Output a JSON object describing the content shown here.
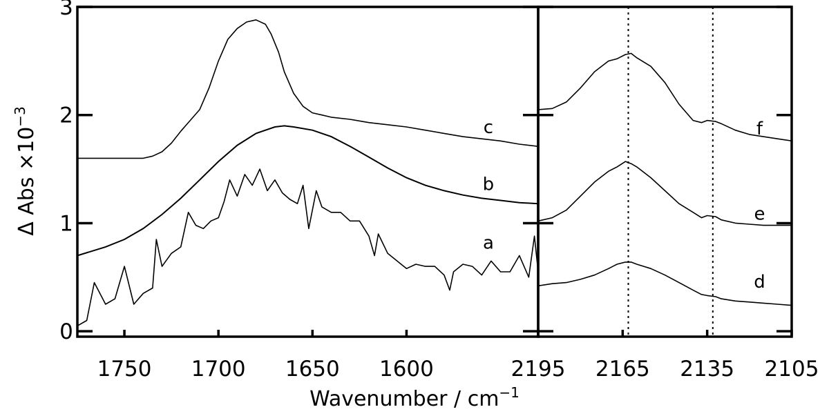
{
  "chart_data": {
    "type": "line",
    "ylabel": "Δ Abs ×10",
    "ylabel_exponent": "−3",
    "xlabel": "Wavenumber / cm",
    "xlabel_exponent": "−1",
    "ylim": [
      -0.05,
      3.0
    ],
    "yticks": [
      "0",
      "1",
      "2",
      "3"
    ],
    "grid": false,
    "panels": [
      {
        "name": "left",
        "xlim": [
          1775,
          1530
        ],
        "xticks": [
          "1750",
          "1700",
          "1650",
          "1600"
        ],
        "series": [
          {
            "name": "c",
            "x": [
              1775,
              1765,
              1750,
              1740,
              1735,
              1730,
              1725,
              1720,
              1715,
              1710,
              1705,
              1700,
              1695,
              1690,
              1685,
              1680,
              1675,
              1672,
              1668,
              1665,
              1660,
              1655,
              1650,
              1645,
              1640,
              1630,
              1620,
              1610,
              1600,
              1590,
              1580,
              1570,
              1560,
              1550,
              1540,
              1530
            ],
            "y": [
              1.6,
              1.6,
              1.6,
              1.6,
              1.62,
              1.66,
              1.74,
              1.85,
              1.95,
              2.05,
              2.25,
              2.5,
              2.7,
              2.8,
              2.86,
              2.88,
              2.84,
              2.75,
              2.58,
              2.4,
              2.2,
              2.08,
              2.02,
              2.0,
              1.98,
              1.96,
              1.93,
              1.91,
              1.89,
              1.86,
              1.83,
              1.8,
              1.78,
              1.76,
              1.73,
              1.71
            ]
          },
          {
            "name": "b",
            "x": [
              1775,
              1760,
              1750,
              1740,
              1730,
              1720,
              1710,
              1700,
              1690,
              1680,
              1670,
              1665,
              1660,
              1650,
              1640,
              1630,
              1620,
              1610,
              1600,
              1590,
              1580,
              1570,
              1560,
              1550,
              1540,
              1530
            ],
            "y": [
              0.7,
              0.78,
              0.85,
              0.95,
              1.08,
              1.23,
              1.4,
              1.57,
              1.72,
              1.83,
              1.89,
              1.9,
              1.89,
              1.86,
              1.8,
              1.71,
              1.61,
              1.51,
              1.42,
              1.35,
              1.3,
              1.26,
              1.23,
              1.21,
              1.19,
              1.18
            ]
          },
          {
            "name": "a",
            "x": [
              1775,
              1770,
              1766,
              1760,
              1755,
              1750,
              1745,
              1740,
              1735,
              1733,
              1730,
              1725,
              1720,
              1716,
              1712,
              1708,
              1704,
              1700,
              1697,
              1694,
              1690,
              1686,
              1682,
              1678,
              1674,
              1670,
              1666,
              1662,
              1658,
              1655,
              1652,
              1648,
              1645,
              1640,
              1635,
              1630,
              1625,
              1620,
              1617,
              1615,
              1610,
              1605,
              1600,
              1595,
              1590,
              1585,
              1580,
              1577,
              1575,
              1570,
              1565,
              1560,
              1555,
              1550,
              1545,
              1540,
              1535,
              1532,
              1530
            ],
            "y": [
              0.05,
              0.1,
              0.45,
              0.25,
              0.3,
              0.6,
              0.25,
              0.35,
              0.4,
              0.85,
              0.6,
              0.72,
              0.78,
              1.1,
              0.98,
              0.95,
              1.02,
              1.05,
              1.2,
              1.4,
              1.25,
              1.45,
              1.35,
              1.5,
              1.3,
              1.4,
              1.28,
              1.22,
              1.18,
              1.35,
              0.95,
              1.3,
              1.15,
              1.1,
              1.1,
              1.02,
              1.02,
              0.88,
              0.7,
              0.9,
              0.72,
              0.65,
              0.58,
              0.62,
              0.6,
              0.6,
              0.52,
              0.38,
              0.55,
              0.62,
              0.6,
              0.52,
              0.65,
              0.55,
              0.55,
              0.7,
              0.5,
              0.88,
              0.55
            ]
          }
        ]
      },
      {
        "name": "right",
        "xlim": [
          2195,
          2105
        ],
        "xticks": [
          "2195",
          "2165",
          "2135",
          "2105"
        ],
        "vlines": [
          2163,
          2133
        ],
        "series": [
          {
            "name": "f",
            "x": [
              2195,
              2190,
              2185,
              2180,
              2175,
              2170,
              2167,
              2164,
              2162,
              2160,
              2155,
              2150,
              2145,
              2140,
              2137,
              2135,
              2132,
              2130,
              2125,
              2120,
              2115,
              2110,
              2105
            ],
            "y": [
              2.05,
              2.06,
              2.12,
              2.25,
              2.4,
              2.5,
              2.52,
              2.56,
              2.57,
              2.53,
              2.45,
              2.3,
              2.1,
              1.95,
              1.93,
              1.95,
              1.94,
              1.92,
              1.86,
              1.82,
              1.8,
              1.78,
              1.76
            ]
          },
          {
            "name": "e",
            "x": [
              2195,
              2190,
              2185,
              2180,
              2175,
              2170,
              2167,
              2164,
              2162,
              2160,
              2155,
              2150,
              2145,
              2140,
              2137,
              2135,
              2132,
              2130,
              2125,
              2120,
              2115,
              2110,
              2105
            ],
            "y": [
              1.02,
              1.05,
              1.12,
              1.25,
              1.38,
              1.48,
              1.52,
              1.57,
              1.55,
              1.52,
              1.42,
              1.3,
              1.18,
              1.1,
              1.05,
              1.07,
              1.06,
              1.03,
              1.0,
              0.99,
              0.98,
              0.98,
              0.98
            ]
          },
          {
            "name": "d",
            "x": [
              2195,
              2190,
              2185,
              2180,
              2175,
              2170,
              2167,
              2164,
              2162,
              2160,
              2155,
              2150,
              2145,
              2140,
              2137,
              2135,
              2132,
              2130,
              2125,
              2120,
              2115,
              2110,
              2105
            ],
            "y": [
              0.42,
              0.44,
              0.45,
              0.48,
              0.52,
              0.58,
              0.62,
              0.64,
              0.64,
              0.62,
              0.58,
              0.52,
              0.45,
              0.38,
              0.34,
              0.33,
              0.32,
              0.3,
              0.28,
              0.27,
              0.26,
              0.25,
              0.24
            ]
          }
        ]
      }
    ]
  }
}
